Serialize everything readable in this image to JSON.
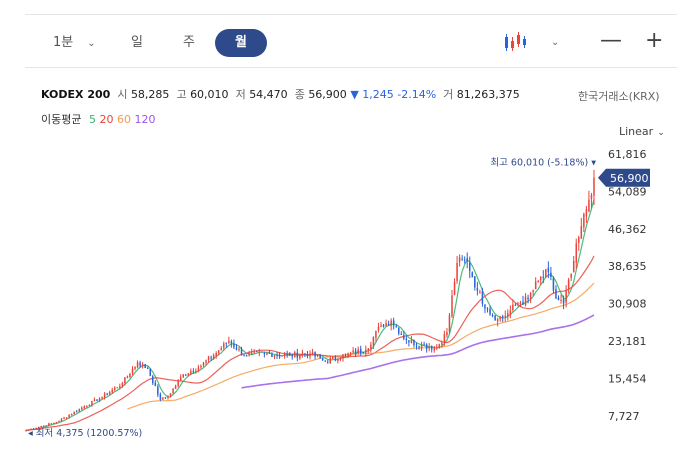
{
  "toolbar": {
    "interval": "1분",
    "periods": [
      "일",
      "주",
      "월"
    ],
    "active_period": "월"
  },
  "info": {
    "name": "KODEX 200",
    "open_label": "시",
    "open": "58,285",
    "high_label": "고",
    "high": "60,010",
    "low_label": "저",
    "low": "54,470",
    "close_label": "종",
    "close": "56,900",
    "change": "▼ 1,245 -2.14%",
    "volume_label": "거",
    "volume": "81,263,375"
  },
  "exchange": "한국거래소(KRX)",
  "ma_legend": {
    "label": "이동평균",
    "periods": [
      "5",
      "20",
      "60",
      "120"
    ],
    "colors": [
      "#3cb371",
      "#e8453c",
      "#f39c4a",
      "#9b59e6"
    ]
  },
  "scale_mode": "Linear",
  "chart_data": {
    "type": "candlestick",
    "ylim": [
      4375,
      61816
    ],
    "yticks": [
      61816,
      54089,
      46362,
      38635,
      30908,
      23181,
      15454,
      7727
    ],
    "ytick_labels": [
      "61,816",
      "54,089",
      "46,362",
      "38,635",
      "30,908",
      "23,181",
      "15,454",
      "7,727"
    ],
    "current_price": 56900,
    "current_price_label": "56,900",
    "high_marker": {
      "value": 60010,
      "label": "최고 60,010 (-5.18%)"
    },
    "low_marker": {
      "value": 4375,
      "label": "최저 4,375 (1200.57%)"
    },
    "close_keypoints": [
      [
        0,
        4700
      ],
      [
        6,
        5600
      ],
      [
        12,
        6400
      ],
      [
        22,
        9400
      ],
      [
        30,
        11600
      ],
      [
        38,
        14500
      ],
      [
        44,
        18800
      ],
      [
        48,
        17400
      ],
      [
        53,
        11000
      ],
      [
        56,
        11800
      ],
      [
        62,
        16300
      ],
      [
        68,
        17700
      ],
      [
        74,
        20300
      ],
      [
        80,
        23200
      ],
      [
        86,
        20200
      ],
      [
        94,
        20600
      ],
      [
        104,
        20200
      ],
      [
        112,
        20600
      ],
      [
        118,
        19000
      ],
      [
        126,
        20300
      ],
      [
        134,
        21400
      ],
      [
        140,
        26400
      ],
      [
        144,
        27400
      ],
      [
        150,
        23400
      ],
      [
        156,
        22300
      ],
      [
        162,
        21800
      ],
      [
        166,
        25000
      ],
      [
        170,
        39300
      ],
      [
        174,
        39700
      ],
      [
        178,
        33600
      ],
      [
        182,
        29700
      ],
      [
        186,
        27700
      ],
      [
        190,
        28900
      ],
      [
        194,
        31000
      ],
      [
        198,
        31800
      ],
      [
        202,
        35600
      ],
      [
        206,
        37400
      ],
      [
        209,
        32000
      ],
      [
        212,
        30900
      ],
      [
        215,
        37100
      ],
      [
        218,
        44600
      ],
      [
        221,
        50400
      ],
      [
        224,
        56900
      ]
    ],
    "ma_start_index": {
      "5": 0,
      "20": 0,
      "60": 40,
      "120": 85
    }
  }
}
